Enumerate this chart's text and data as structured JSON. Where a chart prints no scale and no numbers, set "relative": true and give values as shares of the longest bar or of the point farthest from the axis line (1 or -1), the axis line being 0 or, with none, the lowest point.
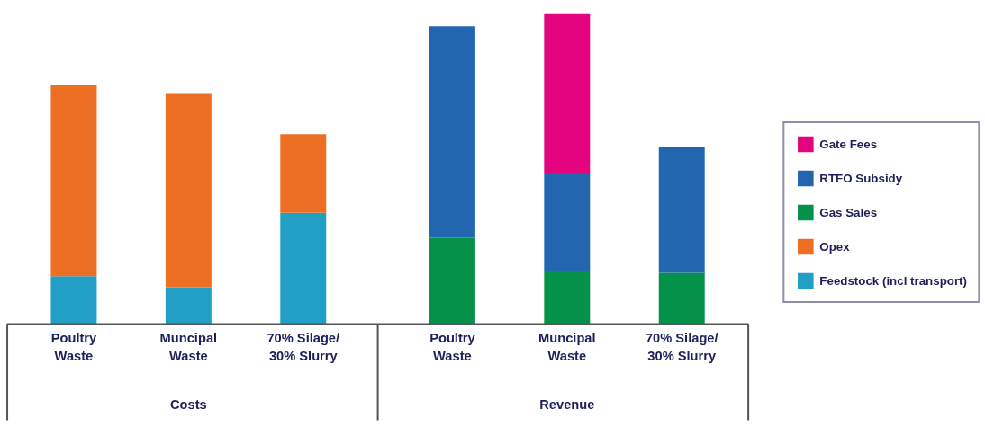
{
  "chart_data": {
    "type": "bar",
    "relative": true,
    "stacked": true,
    "legend": "right",
    "grid": false,
    "categories": [
      "Poultry\nWaste",
      "Muncipal\nWaste",
      "70% Silage/\n30% Slurry",
      "Poultry\nWaste",
      "Muncipal\nWaste",
      "70% Silage/\n30% Slurry"
    ],
    "annotations": [
      "Costs",
      "Revenue"
    ],
    "series": [
      {
        "name": "Feedstock (incl transport)",
        "color": "#219fc5",
        "values": [
          0.155,
          0.119,
          0.359,
          0,
          0,
          0
        ]
      },
      {
        "name": "Opex",
        "color": "#ec6f24",
        "values": [
          0.616,
          0.624,
          0.254,
          0,
          0,
          0
        ]
      },
      {
        "name": "Gas Sales",
        "color": "#04924a",
        "values": [
          0,
          0,
          0,
          0.279,
          0.171,
          0.166
        ]
      },
      {
        "name": "RTFO Subsidy",
        "color": "#2266b0",
        "values": [
          0,
          0,
          0,
          0.682,
          0.312,
          0.406
        ]
      },
      {
        "name": "Gate Fees",
        "color": "#e5047f",
        "values": [
          0,
          0,
          0,
          0,
          0.517,
          0
        ]
      }
    ]
  }
}
